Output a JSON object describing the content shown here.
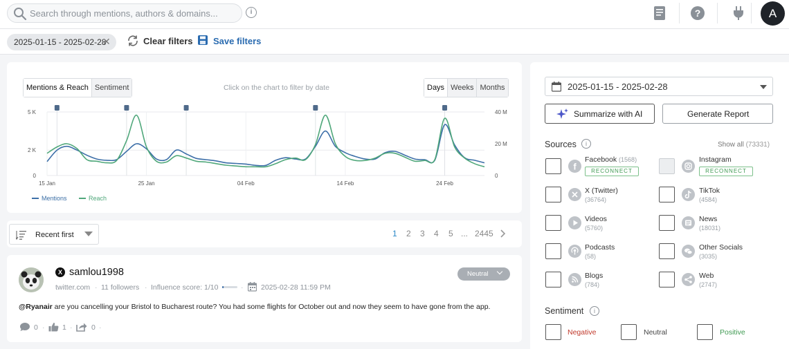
{
  "topbar": {
    "search_placeholder": "Search through mentions, authors & domains...",
    "info_glyph": "i",
    "avatar_letter": "A",
    "icons": [
      "search-icon",
      "info-icon",
      "book-icon",
      "help-icon",
      "plug-icon"
    ]
  },
  "filters": {
    "date_range": "2025-01-15 - 2025-02-28",
    "clear_label": "Clear filters",
    "save_label": "Save filters"
  },
  "chart": {
    "tabs": [
      "Mentions & Reach",
      "Sentiment"
    ],
    "hint": "Click on the chart to filter by date",
    "periods": [
      "Days",
      "Weeks",
      "Months"
    ]
  },
  "chart_data": {
    "type": "line",
    "title": "",
    "xlabel": "",
    "ylabel": "",
    "x_ticks": [
      "15 Jan",
      "25 Jan",
      "04 Feb",
      "14 Feb",
      "24 Feb"
    ],
    "x_dates": [
      "2025-01-15",
      "2025-01-16",
      "2025-01-17",
      "2025-01-18",
      "2025-01-19",
      "2025-01-20",
      "2025-01-21",
      "2025-01-22",
      "2025-01-23",
      "2025-01-24",
      "2025-01-25",
      "2025-01-26",
      "2025-01-27",
      "2025-01-28",
      "2025-01-29",
      "2025-01-30",
      "2025-01-31",
      "2025-02-01",
      "2025-02-02",
      "2025-02-03",
      "2025-02-04",
      "2025-02-05",
      "2025-02-06",
      "2025-02-07",
      "2025-02-08",
      "2025-02-09",
      "2025-02-10",
      "2025-02-11",
      "2025-02-12",
      "2025-02-13",
      "2025-02-14",
      "2025-02-15",
      "2025-02-16",
      "2025-02-17",
      "2025-02-18",
      "2025-02-19",
      "2025-02-20",
      "2025-02-21",
      "2025-02-22",
      "2025-02-23",
      "2025-02-24",
      "2025-02-25",
      "2025-02-26",
      "2025-02-27",
      "2025-02-28"
    ],
    "y_left_ticks": [
      "0",
      "2 K",
      "5 K"
    ],
    "y_right_ticks": [
      "0",
      "20 M",
      "40 M"
    ],
    "y_left_range": [
      0,
      5000
    ],
    "y_right_range": [
      0,
      40000000
    ],
    "event_markers": [
      "2025-01-16",
      "2025-01-23",
      "2025-01-29",
      "2025-02-11",
      "2025-02-24"
    ],
    "grid": true,
    "legend_position": "bottom-left",
    "series": [
      {
        "name": "Mentions",
        "color": "#3d6fa8",
        "axis": "left",
        "values": [
          1100,
          2000,
          2300,
          2000,
          1600,
          1300,
          1200,
          1250,
          1900,
          2500,
          2100,
          1300,
          1250,
          2000,
          1700,
          1350,
          1250,
          1150,
          1000,
          950,
          900,
          800,
          800,
          1200,
          1400,
          1300,
          1300,
          2300,
          3500,
          2300,
          1800,
          1500,
          1300,
          1300,
          1800,
          1900,
          1600,
          1300,
          1250,
          1200,
          4000,
          2400,
          1400,
          1200,
          1000
        ]
      },
      {
        "name": "Reach",
        "color": "#4fa77a",
        "axis": "right",
        "values": [
          14000000,
          18000000,
          20000000,
          17000000,
          10000000,
          9000000,
          8000000,
          9500000,
          22000000,
          38000000,
          18000000,
          9000000,
          8500000,
          12500000,
          11000000,
          9000000,
          8500000,
          7500000,
          6500000,
          6000000,
          5500000,
          5500000,
          5500000,
          7500000,
          10000000,
          11000000,
          10000000,
          19500000,
          38000000,
          20000000,
          12000000,
          9500000,
          9500000,
          11000000,
          14000000,
          14000000,
          11500000,
          9000000,
          9500000,
          10000000,
          36000000,
          18000000,
          11000000,
          7500000,
          5500000
        ]
      }
    ]
  },
  "sort": {
    "label": "Recent first",
    "pages": [
      "1",
      "2",
      "3",
      "4",
      "5",
      "...",
      "2445"
    ]
  },
  "mention": {
    "author": "samlou1998",
    "domain": "twitter.com",
    "followers": "11 followers",
    "influence": "Influence score: 1/10",
    "datetime": "2025-02-28 11:59 PM",
    "sentiment": "Neutral",
    "text_mention": "@Ryanair",
    "text_body": " are you cancelling your Bristol to Bucharest route? You had some flights for October out and now they seem to have gone from the app.",
    "comments": "0",
    "likes": "1",
    "shares": "0"
  },
  "right": {
    "date_range": "2025-01-15 - 2025-02-28",
    "summarize_label": "Summarize with AI",
    "report_label": "Generate Report",
    "sources_title": "Sources",
    "show_all": "Show all",
    "show_all_count": "(73331)",
    "reconnect": "RECONNECT",
    "sources": [
      {
        "name": "Facebook",
        "count": "(1568)",
        "icon": "facebook-icon"
      },
      {
        "name": "Instagram",
        "count": "",
        "icon": "instagram-icon"
      },
      {
        "name": "X (Twitter)",
        "count": "(36764)",
        "icon": "x-twitter-icon"
      },
      {
        "name": "TikTok",
        "count": "(4584)",
        "icon": "tiktok-icon"
      },
      {
        "name": "Videos",
        "count": "(5760)",
        "icon": "play-icon"
      },
      {
        "name": "News",
        "count": "(18031)",
        "icon": "newspaper-icon"
      },
      {
        "name": "Podcasts",
        "count": "(58)",
        "icon": "podcast-icon"
      },
      {
        "name": "Other Socials",
        "count": "(3035)",
        "icon": "chat-bubbles-icon"
      },
      {
        "name": "Blogs",
        "count": "(784)",
        "icon": "rss-icon"
      },
      {
        "name": "Web",
        "count": "(2747)",
        "icon": "share-icon"
      }
    ],
    "sentiment_title": "Sentiment",
    "sentiments": [
      {
        "label": "Negative",
        "color": "#c0392b"
      },
      {
        "label": "Neutral",
        "color": "#444444"
      },
      {
        "label": "Positive",
        "color": "#3f9a52"
      }
    ]
  }
}
